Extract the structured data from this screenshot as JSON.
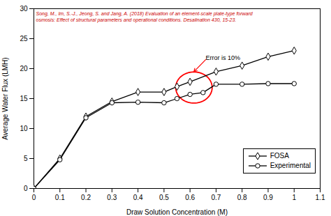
{
  "chart_data": {
    "type": "line",
    "xlabel": "Draw Solution Concentration (M)",
    "ylabel": "Average Water Flux (LMH)",
    "xlim": [
      0,
      1.1
    ],
    "ylim": [
      0,
      30
    ],
    "xticks": [
      0,
      0.1,
      0.2,
      0.3,
      0.4,
      0.5,
      0.6,
      0.7,
      0.8,
      0.9,
      1.0,
      1.1
    ],
    "yticks": [
      0,
      5,
      10,
      15,
      20,
      25,
      30
    ],
    "grid": false,
    "legend": "lower right",
    "series": [
      {
        "name": "FOSA",
        "color": "black",
        "marker": "diamond",
        "x": [
          0,
          0.1,
          0.2,
          0.3,
          0.4,
          0.5,
          0.55,
          0.6,
          0.7,
          0.8,
          0.9,
          1.0
        ],
        "values": [
          0,
          5.0,
          12.0,
          14.5,
          16.1,
          16.1,
          17.0,
          17.8,
          19.5,
          20.5,
          22.0,
          23.0
        ]
      },
      {
        "name": "Experimental",
        "color": "black",
        "marker": "circle",
        "x": [
          0,
          0.1,
          0.2,
          0.3,
          0.4,
          0.5,
          0.55,
          0.6,
          0.65,
          0.7,
          0.8,
          0.9,
          1.0
        ],
        "values": [
          0,
          4.8,
          11.8,
          14.3,
          14.4,
          14.3,
          15.0,
          15.7,
          16.0,
          17.4,
          17.4,
          17.5,
          17.5
        ]
      }
    ],
    "ellipse": {
      "x": 0.615,
      "y": 16.85,
      "width": 0.14,
      "height": 5.2,
      "color": "red"
    },
    "annotations": [
      {
        "text": "Error is 10%",
        "x": 0.66,
        "y": 21.5,
        "arrow_x": 0.615,
        "arrow_y": 19.5,
        "color": "red"
      }
    ],
    "reference": {
      "lines": [
        "Song, M., Im, S.-J., Jeong, S. and Jang, A. (2018) Evaluation of an element-scale plate-type forward",
        "osmosis: Effect of structural parameters and operational conditions. Desalination 430, 15-23."
      ],
      "color": "#cc0000"
    }
  }
}
